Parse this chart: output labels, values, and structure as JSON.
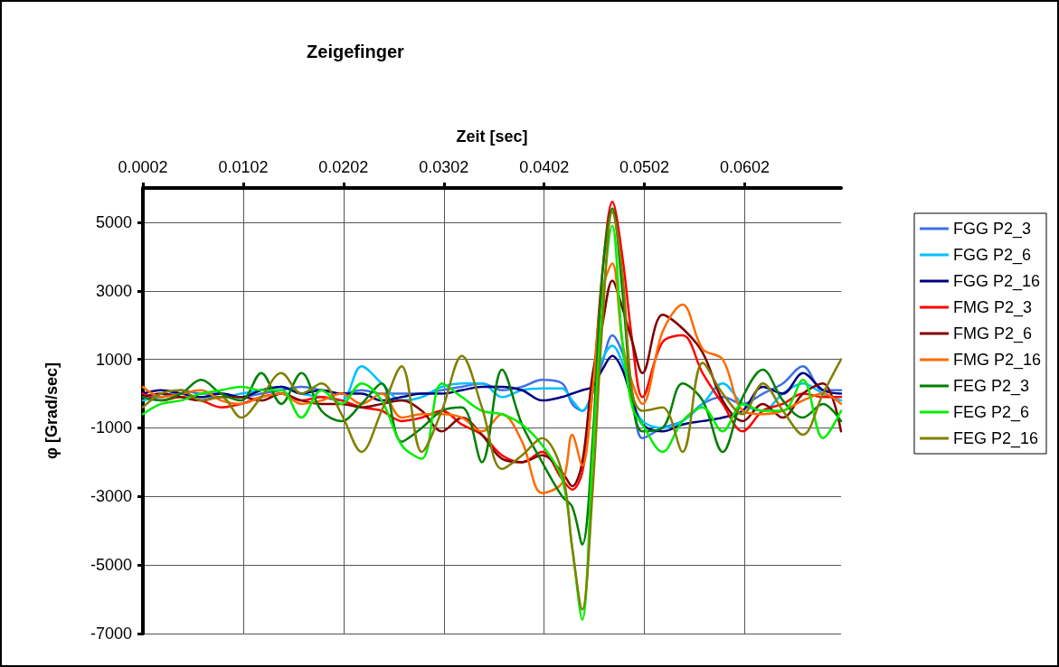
{
  "chart_data": {
    "type": "line",
    "title": "Zeigefinger",
    "xlabel": "Zeit [sec]",
    "ylabel": "φ [Grad/sec]",
    "x": [
      0.0002,
      0.002,
      0.004,
      0.006,
      0.008,
      0.01,
      0.012,
      0.014,
      0.016,
      0.018,
      0.02,
      0.022,
      0.024,
      0.026,
      0.028,
      0.03,
      0.032,
      0.034,
      0.036,
      0.038,
      0.04,
      0.042,
      0.043,
      0.044,
      0.045,
      0.046,
      0.047,
      0.048,
      0.049,
      0.05,
      0.052,
      0.054,
      0.056,
      0.058,
      0.06,
      0.062,
      0.064,
      0.066,
      0.068,
      0.0698
    ],
    "xlim": [
      0.0002,
      0.0698
    ],
    "xticks": [
      0.0002,
      0.0102,
      0.0202,
      0.0302,
      0.0402,
      0.0502,
      0.0602
    ],
    "ylim": [
      -7000,
      6000
    ],
    "yticks": [
      -7000,
      -5000,
      -3000,
      -1000,
      1000,
      3000,
      5000
    ],
    "grid": true,
    "legend": "right",
    "marker": "none",
    "line_style": "solid",
    "series": [
      {
        "name": "FGG P2_3",
        "color": "#3f6fe8",
        "values": [
          0,
          -100,
          100,
          0,
          0,
          -100,
          0,
          100,
          200,
          100,
          0,
          100,
          0,
          0,
          0,
          100,
          200,
          300,
          100,
          200,
          400,
          300,
          -300,
          -500,
          0,
          900,
          1700,
          1200,
          0,
          -1300,
          -1000,
          -800,
          -300,
          -100,
          -300,
          0,
          300,
          800,
          100,
          100
        ]
      },
      {
        "name": "FGG P2_6",
        "color": "#00c0ff",
        "values": [
          -200,
          -100,
          0,
          -100,
          -100,
          0,
          100,
          200,
          0,
          -100,
          -200,
          800,
          300,
          -200,
          -100,
          200,
          300,
          300,
          -100,
          100,
          150,
          150,
          -200,
          -500,
          0,
          1000,
          1400,
          900,
          -200,
          -800,
          -1000,
          -800,
          -300,
          300,
          -300,
          -500,
          0,
          300,
          0,
          -200
        ]
      },
      {
        "name": "FGG P2_16",
        "color": "#000080",
        "values": [
          0,
          100,
          0,
          -100,
          0,
          -100,
          100,
          200,
          0,
          100,
          0,
          0,
          -200,
          -100,
          0,
          0,
          100,
          200,
          200,
          100,
          -200,
          -100,
          0,
          100,
          200,
          700,
          1100,
          700,
          -200,
          -900,
          -1100,
          -900,
          -800,
          -700,
          -500,
          200,
          0,
          600,
          100,
          0
        ]
      },
      {
        "name": "FMG P2_3",
        "color": "#ff0000",
        "values": [
          0,
          -200,
          -100,
          -200,
          -400,
          -300,
          -100,
          0,
          -200,
          -100,
          -200,
          -400,
          -500,
          -800,
          -700,
          -500,
          -900,
          -1200,
          -1800,
          -2000,
          -1700,
          -2500,
          -2800,
          -2300,
          0,
          3500,
          5600,
          4000,
          1500,
          -100,
          1500,
          1700,
          600,
          -300,
          -1100,
          -500,
          -300,
          0,
          -100,
          -100
        ]
      },
      {
        "name": "FMG P2_6",
        "color": "#800000",
        "values": [
          -100,
          0,
          -100,
          -200,
          -100,
          -100,
          -200,
          0,
          -200,
          -300,
          -300,
          -400,
          -300,
          -200,
          -500,
          -1100,
          -700,
          -1200,
          -1900,
          -2000,
          -1800,
          -2300,
          -2700,
          -2000,
          500,
          2000,
          3300,
          2500,
          1500,
          600,
          2300,
          1900,
          1200,
          -200,
          -800,
          -300,
          -700,
          0,
          300,
          -1100
        ]
      },
      {
        "name": "FMG P2_16",
        "color": "#ff6a00",
        "values": [
          200,
          -100,
          0,
          100,
          -200,
          -300,
          -100,
          0,
          -300,
          -200,
          0,
          -300,
          0,
          -700,
          -600,
          -600,
          -700,
          -1100,
          -600,
          -1400,
          -2900,
          -2600,
          -1200,
          -2100,
          0,
          3000,
          3800,
          1500,
          300,
          -300,
          1800,
          2600,
          1300,
          1000,
          -500,
          -600,
          -500,
          -200,
          0,
          -300
        ]
      },
      {
        "name": "FEG P2_3",
        "color": "#007f00",
        "values": [
          -100,
          -200,
          0,
          400,
          0,
          -200,
          600,
          -300,
          600,
          -500,
          -800,
          -300,
          300,
          -1400,
          -1000,
          -500,
          -400,
          -2000,
          700,
          -900,
          -2000,
          -3000,
          -3300,
          -4400,
          -1500,
          3500,
          5400,
          3000,
          -200,
          -1100,
          -1000,
          300,
          -200,
          -1700,
          -100,
          700,
          -200,
          -700,
          -300,
          -800
        ]
      },
      {
        "name": "FEG P2_6",
        "color": "#00ee00",
        "values": [
          -600,
          -300,
          -200,
          0,
          100,
          200,
          100,
          100,
          -700,
          100,
          -300,
          300,
          -200,
          -1500,
          -1900,
          300,
          -100,
          -500,
          -600,
          -900,
          -1500,
          -2500,
          -4500,
          -6600,
          -2000,
          2500,
          4900,
          1500,
          -400,
          -900,
          -1700,
          -800,
          -400,
          -1100,
          -300,
          -500,
          -500,
          400,
          -1300,
          -500
        ]
      },
      {
        "name": "FEG P2_16",
        "color": "#808000",
        "values": [
          -400,
          0,
          100,
          -200,
          -100,
          -700,
          -100,
          600,
          0,
          300,
          -600,
          -1700,
          -500,
          800,
          -1700,
          -500,
          1100,
          -400,
          -2200,
          -1800,
          -1300,
          -2300,
          -4500,
          -6300,
          -3000,
          2000,
          5300,
          3500,
          0,
          -500,
          -400,
          -1700,
          900,
          0,
          -600,
          300,
          -500,
          -1200,
          0,
          1000
        ]
      }
    ]
  }
}
